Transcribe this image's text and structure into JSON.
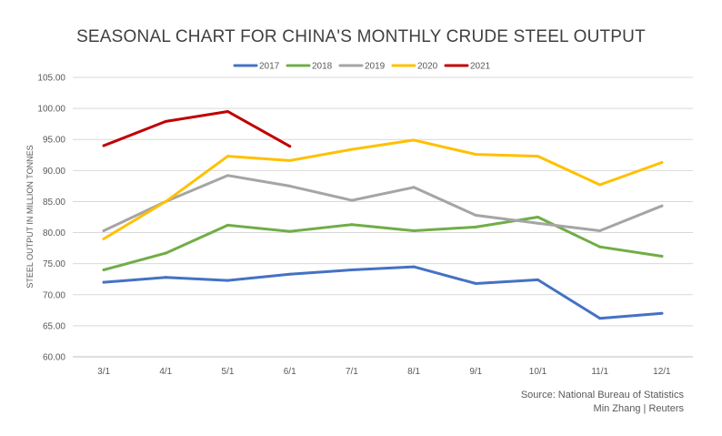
{
  "chart_data": {
    "type": "line",
    "title": "SEASONAL CHART FOR CHINA'S MONTHLY CRUDE STEEL OUTPUT",
    "xlabel": "",
    "ylabel": "STEEL OUTPUT IN MILLION TONNES",
    "ylim": [
      60,
      105
    ],
    "ytick_step": 5,
    "ytick_labels": [
      "60.00",
      "65.00",
      "70.00",
      "75.00",
      "80.00",
      "85.00",
      "90.00",
      "95.00",
      "100.00",
      "105.00"
    ],
    "categories": [
      "3/1",
      "4/1",
      "5/1",
      "6/1",
      "7/1",
      "8/1",
      "9/1",
      "10/1",
      "11/1",
      "12/1"
    ],
    "grid": true,
    "legend_position": "top",
    "series": [
      {
        "name": "2017",
        "color": "#4472C4",
        "values": [
          72.0,
          72.8,
          72.3,
          73.3,
          74.0,
          74.5,
          71.8,
          72.4,
          66.2,
          67.0
        ]
      },
      {
        "name": "2018",
        "color": "#70AD47",
        "values": [
          74.0,
          76.7,
          81.2,
          80.2,
          81.3,
          80.3,
          80.9,
          82.5,
          77.7,
          76.2
        ]
      },
      {
        "name": "2019",
        "color": "#A5A5A5",
        "values": [
          80.3,
          85.0,
          89.2,
          87.5,
          85.2,
          87.3,
          82.8,
          81.5,
          80.3,
          84.3
        ]
      },
      {
        "name": "2020",
        "color": "#FFC000",
        "values": [
          79.0,
          85.0,
          92.3,
          91.6,
          93.4,
          94.9,
          92.6,
          92.3,
          87.7,
          91.3
        ]
      },
      {
        "name": "2021",
        "color": "#C00000",
        "values": [
          94.0,
          97.9,
          99.5,
          93.9,
          null,
          null,
          null,
          null,
          null,
          null
        ]
      }
    ]
  },
  "source": {
    "line1": "Source: National Bureau of Statistics",
    "line2": "Min Zhang | Reuters"
  }
}
